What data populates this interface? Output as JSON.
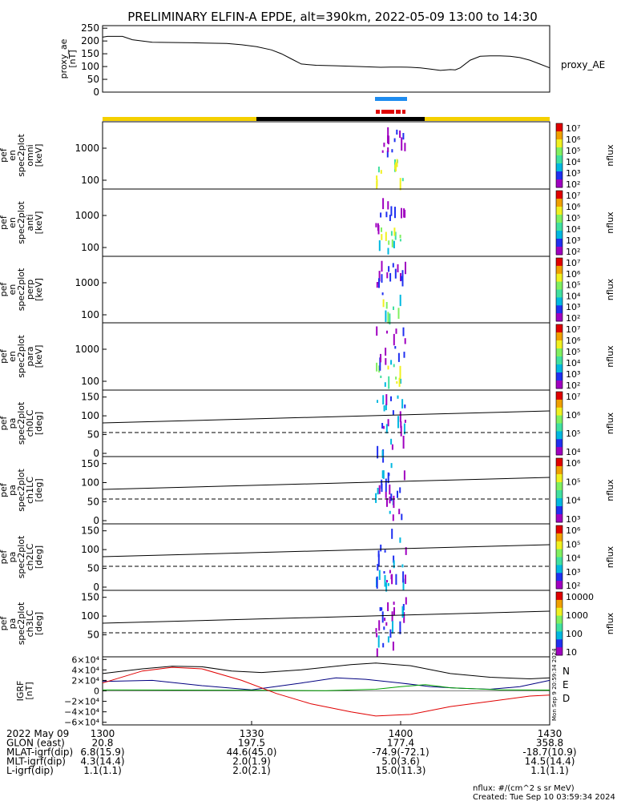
{
  "title": "PRELIMINARY ELFIN-A EPDE, alt=390km, 2022-05-09 13:00 to 14:30",
  "colors": {
    "sun_bar": "#f5d000",
    "shadow_bar": "#000000",
    "science_bar": "#1e8cf0",
    "spin_bar": "#e00000",
    "bfield_n": "#000080",
    "bfield_e": "#00a000",
    "bfield_d": "#e00000",
    "bfield_total": "#000000"
  },
  "chart_data": [
    {
      "type": "line",
      "name": "proxy_ae",
      "ylabel": "proxy_ae\n[nT]",
      "right_label": "proxy_AE",
      "ylim": [
        0,
        260
      ],
      "yticks": [
        "0",
        "50",
        "100",
        "150",
        "200",
        "250"
      ],
      "x_minutes": [
        0,
        1,
        4,
        6,
        10,
        18,
        25,
        28,
        31,
        34,
        36,
        38,
        40,
        43,
        47,
        52,
        56,
        58,
        60,
        62,
        64,
        66,
        68,
        70,
        71,
        72,
        74,
        76,
        78,
        80,
        82,
        84,
        86,
        88,
        90
      ],
      "values": [
        215,
        218,
        218,
        205,
        195,
        193,
        190,
        185,
        178,
        165,
        150,
        130,
        110,
        105,
        103,
        100,
        97,
        98,
        98,
        97,
        95,
        90,
        85,
        88,
        87,
        95,
        125,
        140,
        142,
        142,
        140,
        135,
        125,
        110,
        95
      ]
    },
    {
      "type": "heatmap",
      "name": "omni",
      "ylabel": "ela\npef\nen\nspec2plot\nomni\n[keV]",
      "yticks": [
        "100",
        "1000"
      ],
      "colorbar": {
        "label": "nflux",
        "ticks": [
          "10⁷",
          "10⁶",
          "10⁵",
          "10⁴",
          "10³",
          "10²"
        ]
      }
    },
    {
      "type": "heatmap",
      "name": "anti",
      "ylabel": "ela\npef\nen\nspec2plot\nanti\n[keV]",
      "yticks": [
        "100",
        "1000"
      ],
      "colorbar": {
        "label": "nflux",
        "ticks": [
          "10⁷",
          "10⁶",
          "10⁵",
          "10⁴",
          "10³",
          "10²"
        ]
      }
    },
    {
      "type": "heatmap",
      "name": "perp",
      "ylabel": "ela\npef\nen\nspec2plot\nperp\n[keV]",
      "yticks": [
        "100",
        "1000"
      ],
      "colorbar": {
        "label": "nflux",
        "ticks": [
          "10⁷",
          "10⁶",
          "10⁵",
          "10⁴",
          "10³",
          "10²"
        ]
      }
    },
    {
      "type": "heatmap",
      "name": "para",
      "ylabel": "ela\npef\nen\nspec2plot\npara\n[keV]",
      "yticks": [
        "100",
        "1000"
      ],
      "colorbar": {
        "label": "nflux",
        "ticks": [
          "10⁷",
          "10⁶",
          "10⁵",
          "10⁴",
          "10³",
          "10²"
        ]
      }
    },
    {
      "type": "heatmap",
      "name": "ch0LC",
      "ylabel": "ela\npef\npa\nspec2plot\nch0LC\n[deg]",
      "yticks": [
        "0",
        "50",
        "100",
        "150"
      ],
      "colorbar": {
        "label": "nflux",
        "ticks": [
          "10⁷",
          "10⁶",
          "10⁵",
          "10⁴"
        ]
      }
    },
    {
      "type": "heatmap",
      "name": "ch1LC",
      "ylabel": "ela\npef\npa\nspec2plot\nch1LC\n[deg]",
      "yticks": [
        "0",
        "50",
        "100",
        "150"
      ],
      "colorbar": {
        "label": "nflux",
        "ticks": [
          "10⁶",
          "10⁵",
          "10⁴",
          "10³"
        ]
      }
    },
    {
      "type": "heatmap",
      "name": "ch2LC",
      "ylabel": "ela\npef\npa\nspec2plot\nch2LC\n[deg]",
      "yticks": [
        "0",
        "50",
        "100",
        "150"
      ],
      "colorbar": {
        "label": "nflux",
        "ticks": [
          "10⁶",
          "10⁵",
          "10⁴",
          "10³",
          "10²"
        ]
      }
    },
    {
      "type": "heatmap",
      "name": "ch3LC",
      "ylabel": "ela\npef\npa\nspec2plot\nch3LC\n[deg]",
      "yticks": [
        "50",
        "100",
        "150"
      ],
      "colorbar": {
        "label": "nflux",
        "ticks": [
          "10000",
          "1000",
          "100",
          "10"
        ]
      }
    },
    {
      "type": "line",
      "name": "IGRF",
      "ylabel": "IGRF\n[nT]",
      "ylim": [
        -65000,
        65000
      ],
      "yticks": [
        "6×10⁴",
        "4×10⁴",
        "2×10⁴",
        "0",
        "−2×10⁴",
        "−4×10⁴",
        "−6×10⁴"
      ],
      "legend": [
        "N",
        "E",
        "D"
      ],
      "side_text": "Mon Sep 9 20:59:34 2024",
      "series": [
        {
          "name": "N",
          "x": [
            0,
            10,
            20,
            30,
            40,
            47,
            53,
            60,
            66,
            72,
            78,
            84,
            90
          ],
          "values": [
            18000,
            20000,
            10000,
            2000,
            15000,
            25000,
            22000,
            15000,
            8000,
            5000,
            3000,
            8000,
            20000
          ]
        },
        {
          "name": "E",
          "x": [
            0,
            15,
            30,
            45,
            55,
            60,
            65,
            70,
            80,
            90
          ],
          "values": [
            2000,
            1500,
            1000,
            500,
            3000,
            8000,
            12000,
            6000,
            2000,
            1500
          ]
        },
        {
          "name": "D",
          "x": [
            0,
            8,
            14,
            20,
            28,
            35,
            42,
            50,
            55,
            62,
            70,
            78,
            86,
            90
          ],
          "values": [
            15000,
            38000,
            45000,
            42000,
            20000,
            -5000,
            -25000,
            -40000,
            -48000,
            -45000,
            -30000,
            -20000,
            -10000,
            -8000
          ]
        },
        {
          "name": "total",
          "x": [
            0,
            8,
            14,
            20,
            26,
            32,
            40,
            50,
            55,
            62,
            70,
            78,
            86,
            90
          ],
          "values": [
            33000,
            42000,
            47000,
            46000,
            38000,
            35000,
            40000,
            50000,
            53000,
            48000,
            33000,
            26000,
            23000,
            25000
          ]
        }
      ]
    }
  ],
  "bottom_table": {
    "rows": [
      {
        "label": "2022 May 09",
        "values": [
          "1300",
          "1330",
          "1400",
          "1430"
        ]
      },
      {
        "label": "GLON (east)",
        "values": [
          "20.8",
          "197.5",
          "177.4",
          "358.8"
        ]
      },
      {
        "label": "MLAT-igrf(dip)",
        "values": [
          "6.8(15.9)",
          "44.6(45.0)",
          "-74.9(-72.1)",
          "-18.7(10.9)"
        ]
      },
      {
        "label": "MLT-igrf(dip)",
        "values": [
          "4.3(14.4)",
          "2.0(1.9)",
          "5.0(3.6)",
          "14.5(14.4)"
        ]
      },
      {
        "label": "L-igrf(dip)",
        "values": [
          "1.1(1.1)",
          "2.0(2.1)",
          "15.0(11.3)",
          "1.1(1.1)"
        ]
      }
    ]
  },
  "footer": {
    "units": "nflux: #/(cm^2 s sr MeV)",
    "created": "Created: Tue Sep 10 03:59:34 2024"
  }
}
